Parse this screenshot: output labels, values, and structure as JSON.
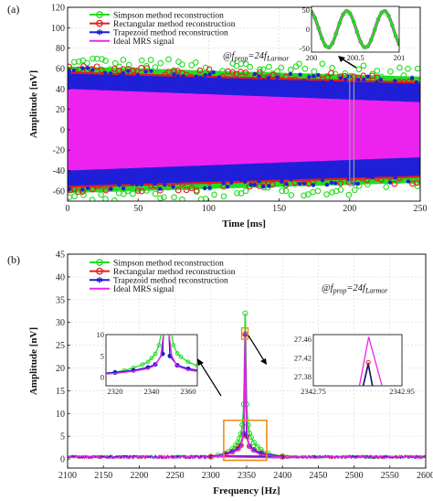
{
  "chart_data": [
    {
      "panel": "(a)",
      "type": "line",
      "xlabel": "Time [ms]",
      "ylabel": "Amplitude [nV]",
      "xlim": [
        0,
        250
      ],
      "ylim": [
        -70,
        120
      ],
      "xticks": [
        0,
        50,
        100,
        150,
        200,
        250
      ],
      "yticks": [
        -60,
        -40,
        -20,
        0,
        20,
        40,
        60,
        80,
        100,
        120
      ],
      "grid": true,
      "legend_position": "top-left",
      "annotation": {
        "prefix": "@",
        "f": "f",
        "sub1": "prop",
        "mid": "=24",
        "sub2": "Larmor"
      },
      "series": [
        {
          "name": "Simpson method reconstruction",
          "color": "#22dd22",
          "marker": "circle",
          "envelope_upper": {
            "x": [
              0,
              250
            ],
            "y": [
              62,
              52
            ]
          },
          "envelope_lower": {
            "x": [
              0,
              250
            ],
            "y": [
              -62,
              -52
            ]
          }
        },
        {
          "name": "Rectangular method reconstruction",
          "color": "#e02020",
          "marker": "circle",
          "envelope_upper": {
            "x": [
              0,
              250
            ],
            "y": [
              57,
              47
            ]
          },
          "envelope_lower": {
            "x": [
              0,
              250
            ],
            "y": [
              -57,
              -47
            ]
          }
        },
        {
          "name": "Trapezoid method reconstruction",
          "color": "#1f1fd8",
          "marker": "asterisk",
          "envelope_upper": {
            "x": [
              0,
              250
            ],
            "y": [
              55,
              45
            ]
          },
          "envelope_lower": {
            "x": [
              0,
              250
            ],
            "y": [
              -55,
              -45
            ]
          }
        },
        {
          "name": "Ideal MRS signal",
          "color": "#ee22ee",
          "envelope_upper": {
            "x": [
              0,
              250
            ],
            "y": [
              40,
              27
            ]
          },
          "envelope_lower": {
            "x": [
              0,
              250
            ],
            "y": [
              -40,
              -27
            ]
          }
        }
      ],
      "inset": {
        "xlim": [
          200,
          201
        ],
        "ylim": [
          -60,
          60
        ],
        "xticks": [
          200,
          200.5,
          201
        ],
        "yticks": [
          -50,
          0,
          50
        ],
        "frequency_cycles": 2.35,
        "amplitude": 48
      }
    },
    {
      "panel": "(b)",
      "type": "line",
      "xlabel": "Frequency [Hz]",
      "ylabel": "Amplitude [nV]",
      "xlim": [
        2100,
        2600
      ],
      "ylim": [
        -2,
        45
      ],
      "xticks": [
        2100,
        2150,
        2200,
        2250,
        2300,
        2350,
        2400,
        2450,
        2500,
        2550,
        2600
      ],
      "yticks": [
        0,
        5,
        10,
        15,
        20,
        25,
        30,
        35,
        40,
        45
      ],
      "grid": true,
      "legend_position": "top-left",
      "annotation": {
        "prefix": "@",
        "f": "f",
        "sub1": "prop",
        "mid": "=24",
        "sub2": "Larmor"
      },
      "series": [
        {
          "name": "Simpson method reconstruction",
          "color": "#22dd22",
          "marker": "circle",
          "x": [
            2300,
            2310,
            2320,
            2325,
            2330,
            2335,
            2338,
            2340,
            2342,
            2344,
            2346,
            2348,
            2350,
            2352,
            2354,
            2356,
            2360,
            2365,
            2370,
            2380,
            2400
          ],
          "y": [
            0.5,
            0.8,
            1.2,
            1.6,
            2.2,
            3.0,
            3.6,
            4.5,
            5.5,
            7.5,
            12,
            32,
            12,
            7.5,
            5.6,
            4.8,
            3.6,
            2.7,
            2.0,
            1.2,
            0.6
          ]
        },
        {
          "name": "Rectangular method reconstruction",
          "color": "#e02020",
          "marker": "circle",
          "x": [
            2300,
            2320,
            2330,
            2338,
            2342,
            2346,
            2348,
            2350,
            2354,
            2360,
            2370,
            2400
          ],
          "y": [
            0.5,
            1.1,
            1.6,
            2.3,
            3.0,
            5.5,
            27.4,
            5.0,
            2.8,
            2.0,
            1.3,
            0.5
          ]
        },
        {
          "name": "Trapezoid method reconstruction",
          "color": "#1f1fd8",
          "marker": "asterisk",
          "x": [
            2300,
            2320,
            2330,
            2338,
            2342,
            2346,
            2348,
            2350,
            2354,
            2360,
            2370,
            2400
          ],
          "y": [
            0.5,
            1.1,
            1.6,
            2.3,
            3.0,
            5.5,
            27.3,
            5.0,
            2.8,
            2.0,
            1.3,
            0.5
          ]
        },
        {
          "name": "Ideal MRS signal",
          "color": "#ee22ee",
          "x": [
            2300,
            2320,
            2330,
            2338,
            2342,
            2345,
            2347,
            2348,
            2349,
            2351,
            2354,
            2360,
            2370,
            2400
          ],
          "y": [
            0.4,
            0.9,
            1.4,
            2.0,
            2.8,
            5.0,
            12,
            27.47,
            12,
            5.0,
            2.6,
            1.7,
            1.0,
            0.4
          ]
        }
      ],
      "inset_left": {
        "xlim": [
          2315,
          2365
        ],
        "ylim": [
          -2,
          10
        ],
        "xticks": [
          2320,
          2340,
          2360
        ],
        "yticks": [
          0,
          5,
          10
        ]
      },
      "inset_right": {
        "xlim": [
          2342.75,
          2342.95
        ],
        "ylim": [
          27.36,
          27.47
        ],
        "xticks": [
          2342.75,
          2342.95
        ],
        "yticks": [
          27.38,
          27.42,
          27.46
        ]
      }
    }
  ]
}
